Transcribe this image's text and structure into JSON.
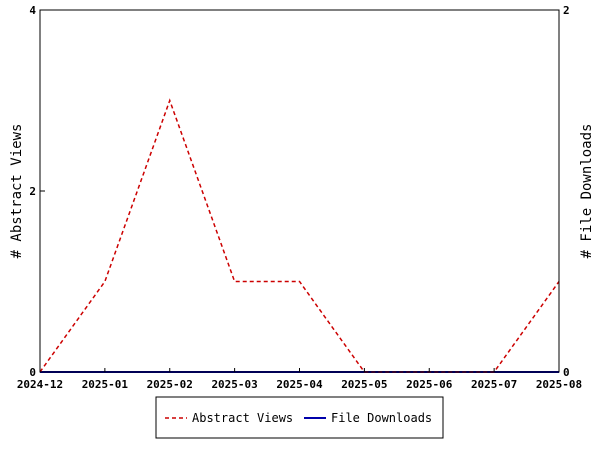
{
  "chart_data": {
    "type": "line",
    "x": [
      "2024-12",
      "2025-01",
      "2025-02",
      "2025-03",
      "2025-04",
      "2025-05",
      "2025-06",
      "2025-07",
      "2025-08"
    ],
    "series": [
      {
        "name": "Abstract Views",
        "axis": "left",
        "color": "#cc0000",
        "style": "dashed",
        "values": [
          0,
          1,
          3,
          1,
          1,
          0,
          0,
          0,
          1
        ]
      },
      {
        "name": "File Downloads",
        "axis": "right",
        "color": "#0000aa",
        "style": "solid",
        "values": [
          0,
          0,
          0,
          0,
          0,
          0,
          0,
          0,
          0
        ]
      }
    ],
    "ylabel_left": "# Abstract Views",
    "ylabel_right": "# File Downloads",
    "ylim_left": [
      0,
      4
    ],
    "yticks_left": [
      0,
      2,
      4
    ],
    "ylim_right": [
      0,
      2
    ],
    "yticks_right": [
      0,
      2
    ],
    "grid": false,
    "legend_position": "bottom-center"
  }
}
